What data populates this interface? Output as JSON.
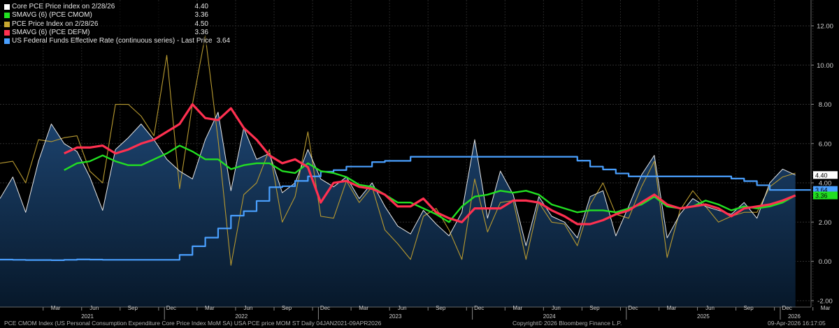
{
  "legend": [
    {
      "label": "Core PCE Price index on 2/28/26",
      "value": "4.40",
      "color": "#ffffff"
    },
    {
      "label": "SMAVG (6) (PCE CMOM)",
      "value": "3.36",
      "color": "#22e022"
    },
    {
      "label": "PCE Price Index on 2/28/26",
      "value": "4.50",
      "color": "#c8a830"
    },
    {
      "label": "SMAVG (6) (PCE DEFM)",
      "value": "3.36",
      "color": "#ff3050"
    },
    {
      "label": "US Federal Funds Effective Rate (continuous series) - Last Price",
      "value": "3.64",
      "color": "#4aa0ff"
    }
  ],
  "footer": {
    "left": "PCE CMOM Index (US Personal Consumption Expenditure Core Price Index MoM SA) USA PCE price MOM ST Daily 04JAN2021-09APR2026",
    "center": "Copyright© 2026 Bloomberg Finance L.P.",
    "right": "09-Apr-2026 16:17:05"
  },
  "last_value_tags": [
    {
      "value": "4.40",
      "series": "core",
      "bg": "#ffffff",
      "fg": "#000000"
    },
    {
      "value": "3.64",
      "series": "fed",
      "bg": "#4aa0ff",
      "fg": "#000000"
    },
    {
      "value": "3.36",
      "series": "core_sma",
      "bg": "#22e022",
      "fg": "#000000"
    }
  ],
  "chart_data": {
    "type": "line",
    "x_start": "2021-01",
    "x_freq": "monthly",
    "ylim": [
      -2.0,
      13.0
    ],
    "yticks": [
      -2.0,
      0.0,
      2.0,
      4.0,
      6.0,
      8.0,
      10.0,
      12.0
    ],
    "ytick_labels": [
      "-2.00",
      "0.00",
      "2.00",
      "4.00",
      "6.00",
      "8.00",
      "10.00",
      "12.00"
    ],
    "grid": true,
    "legend_position": "top-left",
    "month_ticks": [
      "Mar",
      "Jun",
      "Sep",
      "Dec",
      "Mar",
      "Jun",
      "Sep",
      "Dec",
      "Mar",
      "Jun",
      "Sep",
      "Dec",
      "Mar",
      "Jun",
      "Sep",
      "Dec",
      "Mar",
      "Jun",
      "Sep",
      "Dec",
      "Mar"
    ],
    "year_ticks": [
      "2021",
      "2022",
      "2023",
      "2024",
      "2025",
      "2026"
    ],
    "series": [
      {
        "key": "core",
        "values": [
          3.2,
          4.3,
          2.5,
          5.1,
          7.0,
          6.0,
          5.6,
          4.3,
          2.6,
          5.7,
          6.3,
          7.0,
          6.2,
          5.2,
          4.6,
          4.2,
          6.2,
          7.6,
          3.6,
          6.8,
          5.2,
          5.5,
          3.5,
          4.0,
          5.7,
          4.2,
          3.8,
          4.3,
          3.2,
          4.0,
          2.8,
          1.8,
          1.4,
          2.6,
          1.9,
          1.3,
          2.5,
          6.2,
          2.2,
          4.6,
          3.4,
          0.8,
          3.3,
          2.3,
          2.0,
          1.2,
          3.3,
          3.6,
          1.3,
          2.8,
          4.4,
          5.4,
          1.2,
          2.4,
          3.2,
          2.8,
          2.6,
          2.4,
          3.0,
          2.2,
          4.0,
          4.7,
          4.4
        ]
      },
      {
        "key": "core_sma",
        "values": [
          null,
          null,
          null,
          null,
          null,
          4.65,
          5.0,
          5.1,
          5.4,
          5.1,
          4.9,
          4.9,
          5.2,
          5.5,
          5.9,
          5.6,
          5.2,
          5.2,
          4.7,
          4.9,
          5.0,
          5.0,
          4.6,
          4.5,
          5.0,
          4.6,
          4.5,
          4.3,
          3.9,
          3.8,
          3.4,
          3.0,
          3.0,
          2.7,
          2.4,
          2.0,
          2.8,
          3.3,
          3.4,
          3.6,
          3.5,
          3.6,
          3.4,
          2.9,
          2.7,
          2.5,
          2.6,
          2.6,
          2.5,
          2.7,
          2.9,
          3.3,
          2.8,
          2.7,
          2.8,
          3.1,
          2.9,
          2.6,
          2.8,
          2.7,
          2.8,
          3.0,
          3.36
        ]
      },
      {
        "key": "pce",
        "values": [
          5.0,
          5.1,
          4.0,
          6.2,
          6.1,
          6.3,
          6.4,
          4.6,
          4.0,
          8.0,
          8.0,
          7.4,
          6.4,
          10.5,
          3.7,
          8.0,
          11.5,
          6.2,
          -0.2,
          3.4,
          4.0,
          5.7,
          2.0,
          3.3,
          6.6,
          2.3,
          2.2,
          4.1,
          3.0,
          3.8,
          1.6,
          0.9,
          0.1,
          2.3,
          2.7,
          1.6,
          0.1,
          4.2,
          1.5,
          3.0,
          3.1,
          0.1,
          3.0,
          2.0,
          1.9,
          0.8,
          2.9,
          4.0,
          2.4,
          2.2,
          3.8,
          5.1,
          0.2,
          2.6,
          3.6,
          2.8,
          2.0,
          2.3,
          2.5,
          2.5,
          3.8,
          4.3,
          4.5
        ]
      },
      {
        "key": "pce_sma",
        "values": [
          null,
          null,
          null,
          null,
          null,
          5.5,
          5.8,
          5.8,
          5.9,
          5.5,
          5.7,
          6.0,
          6.2,
          6.6,
          7.0,
          8.0,
          7.3,
          7.2,
          7.8,
          6.8,
          6.2,
          5.4,
          5.0,
          5.2,
          4.8,
          3.0,
          4.0,
          4.1,
          3.8,
          3.7,
          3.4,
          2.8,
          2.8,
          3.2,
          2.5,
          2.2,
          2.0,
          2.7,
          2.7,
          2.7,
          3.1,
          3.1,
          3.0,
          2.6,
          2.3,
          1.9,
          1.9,
          2.1,
          2.4,
          2.6,
          3.0,
          3.4,
          2.9,
          2.7,
          2.8,
          2.9,
          2.7,
          2.3,
          2.7,
          2.8,
          2.9,
          3.1,
          3.36
        ]
      },
      {
        "key": "fed",
        "step": true,
        "values": [
          0.09,
          0.08,
          0.07,
          0.07,
          0.06,
          0.08,
          0.1,
          0.09,
          0.08,
          0.08,
          0.08,
          0.08,
          0.08,
          0.08,
          0.33,
          0.77,
          1.21,
          1.68,
          2.33,
          2.56,
          3.08,
          3.78,
          3.83,
          4.1,
          4.33,
          4.57,
          4.65,
          4.83,
          4.83,
          5.06,
          5.12,
          5.12,
          5.33,
          5.33,
          5.33,
          5.33,
          5.33,
          5.33,
          5.33,
          5.33,
          5.33,
          5.33,
          5.33,
          5.33,
          5.33,
          5.13,
          4.83,
          4.68,
          4.48,
          4.33,
          4.33,
          4.33,
          4.33,
          4.33,
          4.33,
          4.33,
          4.33,
          4.22,
          4.09,
          3.88,
          3.64,
          3.64,
          3.64
        ]
      }
    ]
  }
}
